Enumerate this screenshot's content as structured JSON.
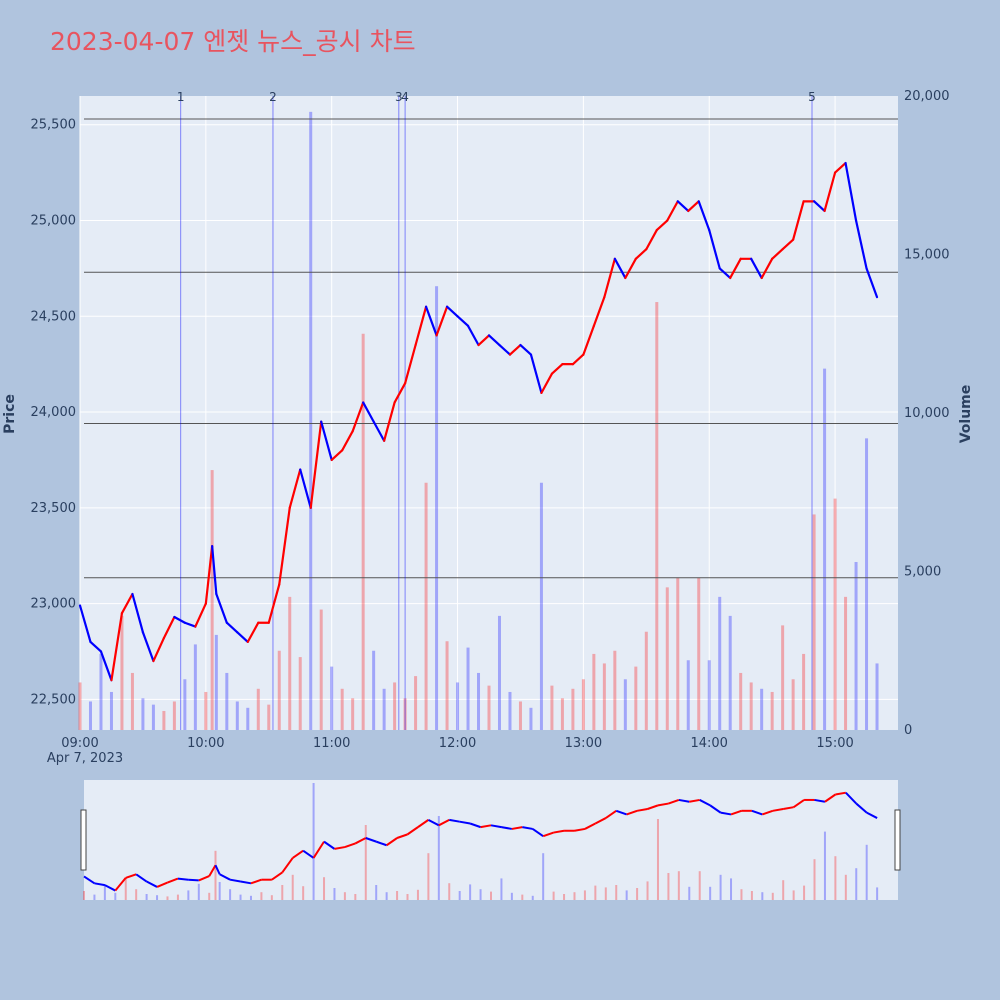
{
  "title": "2023-04-07 엔젯 뉴스_공시 차트",
  "colors": {
    "up": "#ff0000",
    "down": "#0000ff",
    "plot_bg": "#e5ecf6",
    "page_bg": "#b0c4de",
    "title": "#e8545f",
    "news_line": "#0000ff"
  },
  "chart_data": {
    "type": "line",
    "subtype": "intraday candlestick with volume bars and news markers",
    "xlabel": "",
    "ylabel": "Price",
    "y2label": "Volume",
    "xtick_labels": [
      "09:00",
      "10:00",
      "11:00",
      "12:00",
      "13:00",
      "14:00",
      "15:00"
    ],
    "xtick_sublabel": "Apr 7, 2023",
    "ytick_labels": [
      "22,500",
      "23,000",
      "23,500",
      "24,000",
      "24,500",
      "25,000",
      "25,500"
    ],
    "y2tick_labels": [
      "0",
      "5,000",
      "10,000",
      "15,000",
      "20,000"
    ],
    "ylim": [
      22340,
      25650
    ],
    "y2lim": [
      0,
      20000
    ],
    "xlim": [
      "09:00",
      "15:30"
    ],
    "grid": true,
    "price_series": [
      [
        "09:00",
        22990
      ],
      [
        "09:05",
        22800
      ],
      [
        "09:10",
        22750
      ],
      [
        "09:15",
        22600
      ],
      [
        "09:20",
        22950
      ],
      [
        "09:25",
        23050
      ],
      [
        "09:30",
        22850
      ],
      [
        "09:35",
        22700
      ],
      [
        "09:40",
        22820
      ],
      [
        "09:45",
        22930
      ],
      [
        "09:50",
        22900
      ],
      [
        "09:55",
        22880
      ],
      [
        "10:00",
        23000
      ],
      [
        "10:03",
        23300
      ],
      [
        "10:05",
        23050
      ],
      [
        "10:10",
        22900
      ],
      [
        "10:15",
        22850
      ],
      [
        "10:20",
        22800
      ],
      [
        "10:25",
        22900
      ],
      [
        "10:30",
        22900
      ],
      [
        "10:35",
        23100
      ],
      [
        "10:40",
        23500
      ],
      [
        "10:45",
        23700
      ],
      [
        "10:50",
        23500
      ],
      [
        "10:55",
        23950
      ],
      [
        "11:00",
        23750
      ],
      [
        "11:05",
        23800
      ],
      [
        "11:10",
        23900
      ],
      [
        "11:15",
        24050
      ],
      [
        "11:20",
        23950
      ],
      [
        "11:25",
        23850
      ],
      [
        "11:30",
        24050
      ],
      [
        "11:35",
        24150
      ],
      [
        "11:40",
        24350
      ],
      [
        "11:45",
        24550
      ],
      [
        "11:50",
        24400
      ],
      [
        "11:55",
        24550
      ],
      [
        "12:00",
        24500
      ],
      [
        "12:05",
        24450
      ],
      [
        "12:10",
        24350
      ],
      [
        "12:15",
        24400
      ],
      [
        "12:20",
        24350
      ],
      [
        "12:25",
        24300
      ],
      [
        "12:30",
        24350
      ],
      [
        "12:35",
        24300
      ],
      [
        "12:40",
        24100
      ],
      [
        "12:45",
        24200
      ],
      [
        "12:50",
        24250
      ],
      [
        "12:55",
        24250
      ],
      [
        "13:00",
        24300
      ],
      [
        "13:05",
        24450
      ],
      [
        "13:10",
        24600
      ],
      [
        "13:15",
        24800
      ],
      [
        "13:20",
        24700
      ],
      [
        "13:25",
        24800
      ],
      [
        "13:30",
        24850
      ],
      [
        "13:35",
        24950
      ],
      [
        "13:40",
        25000
      ],
      [
        "13:45",
        25100
      ],
      [
        "13:50",
        25050
      ],
      [
        "13:55",
        25100
      ],
      [
        "14:00",
        24950
      ],
      [
        "14:05",
        24750
      ],
      [
        "14:10",
        24700
      ],
      [
        "14:15",
        24800
      ],
      [
        "14:20",
        24800
      ],
      [
        "14:25",
        24700
      ],
      [
        "14:30",
        24800
      ],
      [
        "14:35",
        24850
      ],
      [
        "14:40",
        24900
      ],
      [
        "14:45",
        25100
      ],
      [
        "14:50",
        25100
      ],
      [
        "14:55",
        25050
      ],
      [
        "15:00",
        25250
      ],
      [
        "15:05",
        25300
      ],
      [
        "15:10",
        25000
      ],
      [
        "15:15",
        24750
      ],
      [
        "15:20",
        24600
      ]
    ],
    "volume_series": [
      [
        "09:00",
        1500
      ],
      [
        "09:05",
        900
      ],
      [
        "09:10",
        2400
      ],
      [
        "09:15",
        1200
      ],
      [
        "09:20",
        3600
      ],
      [
        "09:25",
        1800
      ],
      [
        "09:30",
        1000
      ],
      [
        "09:35",
        800
      ],
      [
        "09:40",
        600
      ],
      [
        "09:45",
        900
      ],
      [
        "09:50",
        1600
      ],
      [
        "09:55",
        2700
      ],
      [
        "10:00",
        1200
      ],
      [
        "10:03",
        8200
      ],
      [
        "10:05",
        3000
      ],
      [
        "10:10",
        1800
      ],
      [
        "10:15",
        900
      ],
      [
        "10:20",
        700
      ],
      [
        "10:25",
        1300
      ],
      [
        "10:30",
        800
      ],
      [
        "10:35",
        2500
      ],
      [
        "10:40",
        4200
      ],
      [
        "10:45",
        2300
      ],
      [
        "10:50",
        19500
      ],
      [
        "10:55",
        3800
      ],
      [
        "11:00",
        2000
      ],
      [
        "11:05",
        1300
      ],
      [
        "11:10",
        1000
      ],
      [
        "11:15",
        12500
      ],
      [
        "11:20",
        2500
      ],
      [
        "11:25",
        1300
      ],
      [
        "11:30",
        1500
      ],
      [
        "11:35",
        1000
      ],
      [
        "11:40",
        1700
      ],
      [
        "11:45",
        7800
      ],
      [
        "11:50",
        14000
      ],
      [
        "11:55",
        2800
      ],
      [
        "12:00",
        1500
      ],
      [
        "12:05",
        2600
      ],
      [
        "12:10",
        1800
      ],
      [
        "12:15",
        1400
      ],
      [
        "12:20",
        3600
      ],
      [
        "12:25",
        1200
      ],
      [
        "12:30",
        900
      ],
      [
        "12:35",
        700
      ],
      [
        "12:40",
        7800
      ],
      [
        "12:45",
        1400
      ],
      [
        "12:50",
        1000
      ],
      [
        "12:55",
        1300
      ],
      [
        "13:00",
        1600
      ],
      [
        "13:05",
        2400
      ],
      [
        "13:10",
        2100
      ],
      [
        "13:15",
        2500
      ],
      [
        "13:20",
        1600
      ],
      [
        "13:25",
        2000
      ],
      [
        "13:30",
        3100
      ],
      [
        "13:35",
        13500
      ],
      [
        "13:40",
        4500
      ],
      [
        "13:45",
        4800
      ],
      [
        "13:50",
        2200
      ],
      [
        "13:55",
        4800
      ],
      [
        "14:00",
        2200
      ],
      [
        "14:05",
        4200
      ],
      [
        "14:10",
        3600
      ],
      [
        "14:15",
        1800
      ],
      [
        "14:20",
        1500
      ],
      [
        "14:25",
        1300
      ],
      [
        "14:30",
        1200
      ],
      [
        "14:35",
        3300
      ],
      [
        "14:40",
        1600
      ],
      [
        "14:45",
        2400
      ],
      [
        "14:50",
        6800
      ],
      [
        "14:55",
        11400
      ],
      [
        "15:00",
        7300
      ],
      [
        "15:05",
        4200
      ],
      [
        "15:10",
        5300
      ],
      [
        "15:15",
        9200
      ],
      [
        "15:20",
        2100
      ]
    ],
    "news_markers": [
      {
        "label": "1",
        "time": "09:48"
      },
      {
        "label": "2",
        "time": "10:32"
      },
      {
        "label": "3",
        "time": "11:32"
      },
      {
        "label": "4",
        "time": "11:35"
      },
      {
        "label": "5",
        "time": "14:49"
      }
    ],
    "horizontal_lines": [
      25530,
      24730,
      23940,
      23135
    ],
    "rangeslider": true
  }
}
